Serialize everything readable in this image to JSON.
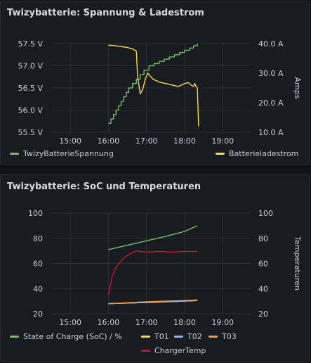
{
  "colors": {
    "background": "#111217",
    "panel": "#181b1f",
    "green": "#73bf69",
    "yellow": "#fade2a",
    "blue": "#8ab8ff",
    "orange": "#ff9830",
    "red": "#c4162a",
    "grid": "#2c3036"
  },
  "panel1": {
    "title": "Twizybatterie: Spannung & Ladestrom",
    "legend": [
      {
        "label": "TwizyBatterieSpannung",
        "color": "#73bf69"
      },
      {
        "label": "Batterieladestrom",
        "color": "#fade2a"
      }
    ]
  },
  "panel2": {
    "title": "Twizybatterie: SoC und Temperaturen",
    "legend": [
      {
        "label": "State of Charge (SoC) / %",
        "color": "#73bf69"
      },
      {
        "label": "T01",
        "color": "#fade2a"
      },
      {
        "label": "T02",
        "color": "#8ab8ff"
      },
      {
        "label": "T03",
        "color": "#ff9830"
      },
      {
        "label": "ChargerTemp",
        "color": "#c4162a"
      }
    ]
  },
  "chart_data": [
    {
      "type": "line",
      "title": "Twizybatterie: Spannung & Ladestrom",
      "x_ticks": [
        "15:00",
        "16:00",
        "17:00",
        "18:00",
        "19:00"
      ],
      "y_left_ticks": [
        "57.5 V",
        "57.0 V",
        "56.5 V",
        "56.0 V",
        "55.5 V"
      ],
      "y_right_ticks": [
        "40.0 A",
        "30.0 A",
        "20.0 A",
        "10.0 A"
      ],
      "y_right_label": "Amps",
      "ylim_left": [
        55.5,
        57.5
      ],
      "ylim_right": [
        10,
        40
      ],
      "grid": true,
      "legend_position": "bottom",
      "series": [
        {
          "name": "TwizyBatterieSpannung",
          "axis": "left",
          "color": "#73bf69",
          "step": true,
          "x": [
            "16:00",
            "16:04",
            "16:08",
            "16:12",
            "16:16",
            "16:20",
            "16:24",
            "16:28",
            "16:32",
            "16:38",
            "16:44",
            "16:50",
            "16:56",
            "17:04",
            "17:12",
            "17:20",
            "17:28",
            "17:36",
            "17:44",
            "17:52",
            "18:00",
            "18:08",
            "18:14",
            "18:20"
          ],
          "y": [
            55.7,
            55.8,
            55.9,
            56.0,
            56.1,
            56.2,
            56.3,
            56.4,
            56.5,
            56.6,
            56.7,
            56.8,
            56.9,
            57.0,
            57.05,
            57.1,
            57.15,
            57.2,
            57.25,
            57.3,
            57.35,
            57.4,
            57.45,
            57.5
          ]
        },
        {
          "name": "Batterieladestrom",
          "axis": "right",
          "color": "#fade2a",
          "x": [
            "16:00",
            "16:10",
            "16:20",
            "16:30",
            "16:38",
            "16:44",
            "16:46",
            "16:50",
            "16:54",
            "16:58",
            "17:02",
            "17:06",
            "17:10",
            "17:20",
            "17:30",
            "17:40",
            "17:50",
            "18:00",
            "18:06",
            "18:10",
            "18:14",
            "18:16",
            "18:18",
            "18:20",
            "18:22"
          ],
          "y": [
            39.5,
            39.3,
            39.0,
            38.7,
            38.2,
            37.5,
            29.0,
            23.0,
            24.5,
            28.0,
            30.0,
            29.0,
            28.0,
            27.0,
            26.5,
            26.0,
            25.5,
            26.5,
            26.8,
            26.0,
            25.5,
            26.5,
            25.5,
            25.0,
            12.0
          ]
        }
      ]
    },
    {
      "type": "line",
      "title": "Twizybatterie: SoC und Temperaturen",
      "x_ticks": [
        "15:00",
        "16:00",
        "17:00",
        "18:00",
        "19:00"
      ],
      "y_left_ticks": [
        "100",
        "80",
        "60",
        "40",
        "20"
      ],
      "y_right_ticks": [
        "100",
        "80",
        "60",
        "40",
        "20"
      ],
      "y_right_label": "Temperaturen",
      "ylim_left": [
        20,
        100
      ],
      "ylim_right": [
        20,
        100
      ],
      "grid": true,
      "legend_position": "bottom",
      "series": [
        {
          "name": "State of Charge (SoC) / %",
          "axis": "left",
          "color": "#73bf69",
          "x": [
            "16:00",
            "16:30",
            "17:00",
            "17:30",
            "18:00",
            "18:20"
          ],
          "y": [
            71,
            74.5,
            78,
            81.5,
            85.5,
            90
          ]
        },
        {
          "name": "T01",
          "axis": "right",
          "color": "#fade2a",
          "x": [
            "16:00",
            "16:30",
            "17:00",
            "17:30",
            "18:00",
            "18:20"
          ],
          "y": [
            28,
            28.5,
            29,
            29.5,
            30,
            30.5
          ]
        },
        {
          "name": "T02",
          "axis": "right",
          "color": "#8ab8ff",
          "x": [
            "16:00",
            "16:30",
            "17:00",
            "17:30",
            "18:00",
            "18:20"
          ],
          "y": [
            28,
            28.5,
            29,
            29.5,
            30,
            30.5
          ]
        },
        {
          "name": "T03",
          "axis": "right",
          "color": "#ff9830",
          "x": [
            "16:00",
            "16:30",
            "17:00",
            "17:30",
            "18:00",
            "18:20"
          ],
          "y": [
            28,
            28.8,
            29.5,
            30,
            30.5,
            31
          ]
        },
        {
          "name": "ChargerTemp",
          "axis": "right",
          "color": "#c4162a",
          "x": [
            "16:00",
            "16:06",
            "16:12",
            "16:20",
            "16:28",
            "16:36",
            "16:44",
            "16:50",
            "17:00",
            "17:20",
            "17:40",
            "18:00",
            "18:20"
          ],
          "y": [
            35,
            50,
            57,
            62,
            66,
            68,
            70,
            69.5,
            69,
            69.5,
            69,
            69.5,
            69.5
          ]
        }
      ]
    }
  ]
}
